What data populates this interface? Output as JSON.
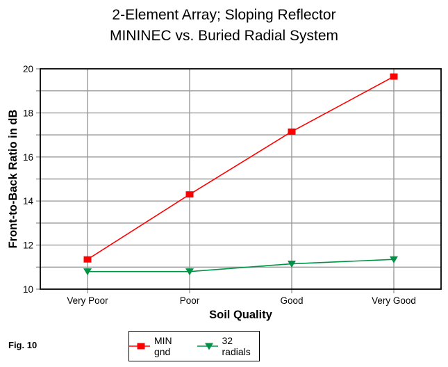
{
  "figure_label": "Fig. 10",
  "title": {
    "line1": "2-Element Array; Sloping Reflector",
    "line2": "MININEC vs. Buried Radial System"
  },
  "chart_data": {
    "type": "line",
    "title": "2-Element Array; Sloping Reflector",
    "subtitle": "MININEC vs. Buried Radial System",
    "categories": [
      "Very Poor",
      "Poor",
      "Good",
      "Very Good"
    ],
    "series": [
      {
        "name": "MIN gnd",
        "marker": "square",
        "color": "#ff0000",
        "values": [
          11.35,
          14.3,
          17.15,
          19.65
        ]
      },
      {
        "name": "32 radials",
        "marker": "triangle-down",
        "color": "#009245",
        "values": [
          10.8,
          10.8,
          11.15,
          11.35
        ]
      }
    ],
    "xlabel": "Soil Quality",
    "ylabel": "Front-to-Back Ratio in dB",
    "ylim": [
      10,
      20
    ],
    "ytick_labels": [
      10,
      12,
      14,
      16,
      18,
      20
    ],
    "grid_step": 1,
    "grid": true,
    "gridline_color": "#999999",
    "axis_color": "#000000",
    "legend_position": "bottom-center"
  }
}
